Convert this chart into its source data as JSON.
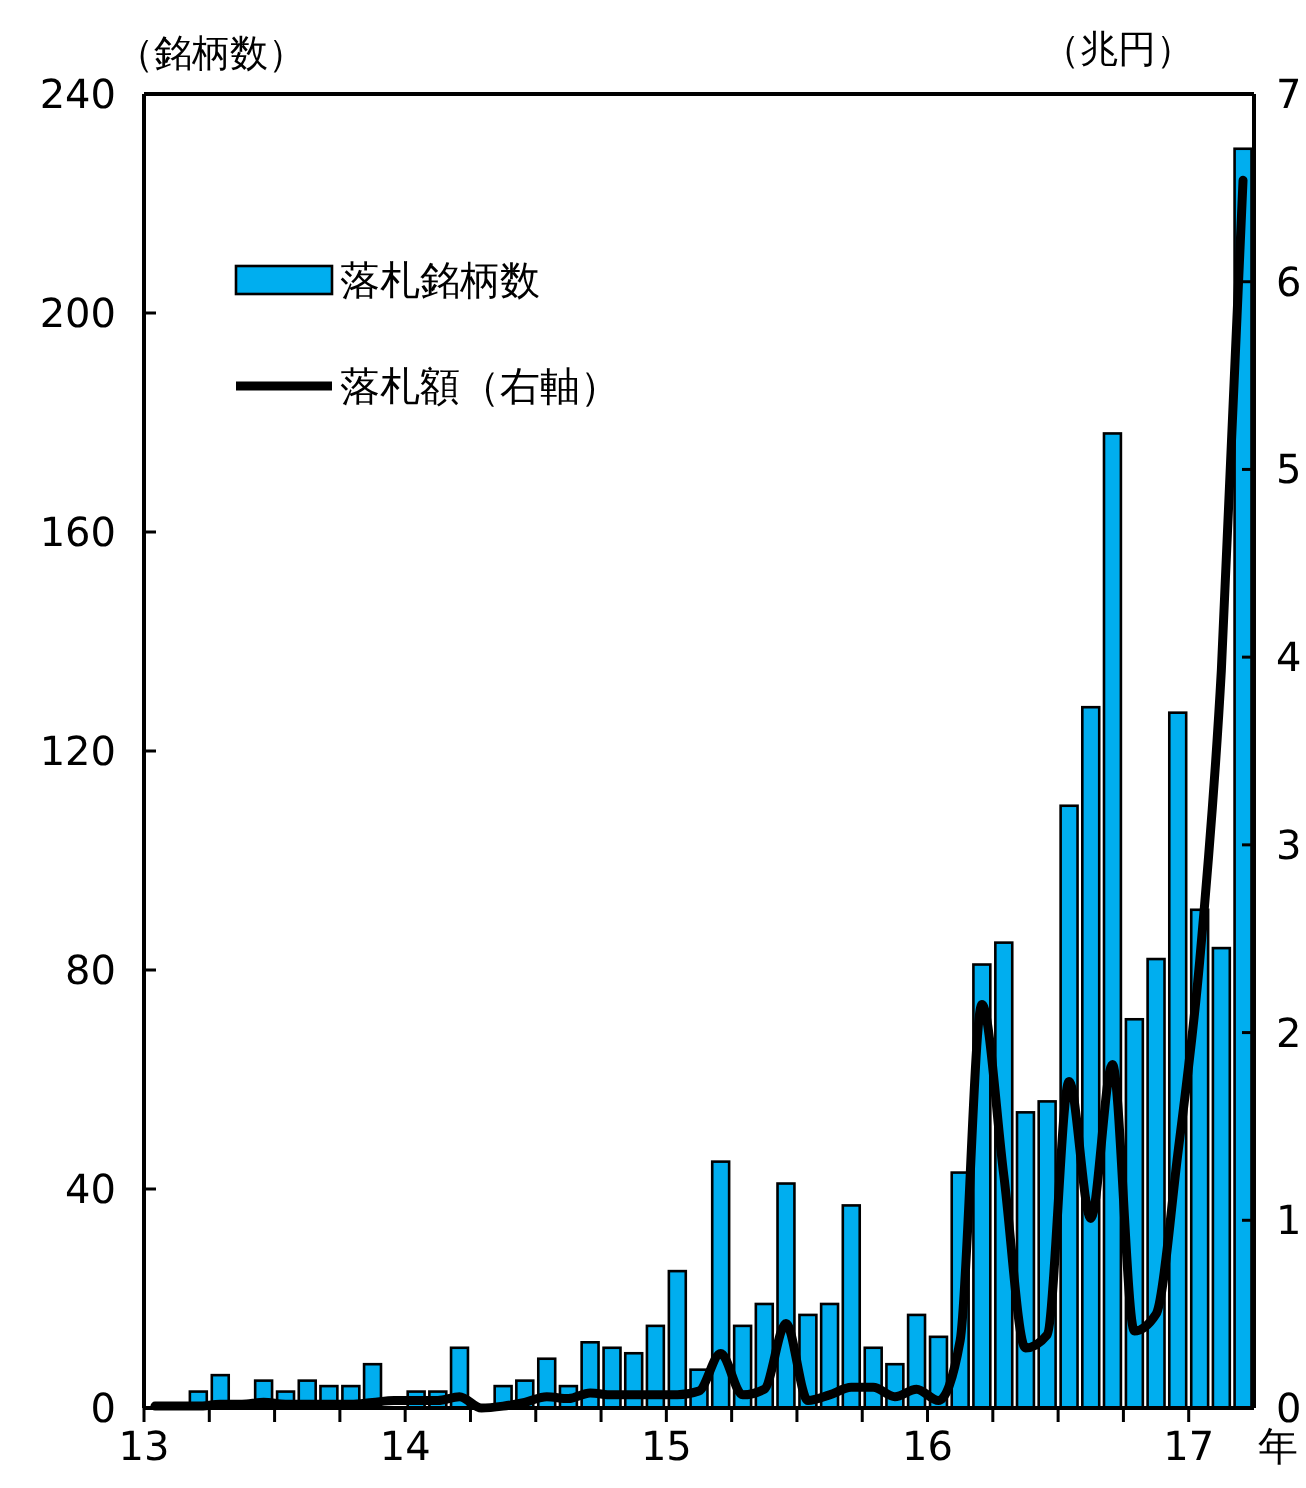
{
  "chart_data": {
    "type": "bar",
    "ylabel": "（銘柄数）",
    "y2label": "（兆円）",
    "xlabel": "年",
    "x": [
      13.042,
      13.125,
      13.208,
      13.292,
      13.375,
      13.458,
      13.542,
      13.625,
      13.708,
      13.792,
      13.875,
      13.958,
      14.042,
      14.125,
      14.208,
      14.292,
      14.375,
      14.458,
      14.542,
      14.625,
      14.708,
      14.792,
      14.875,
      14.958,
      15.042,
      15.125,
      15.208,
      15.292,
      15.375,
      15.458,
      15.542,
      15.625,
      15.708,
      15.792,
      15.875,
      15.958,
      16.042,
      16.125,
      16.208,
      16.292,
      16.375,
      16.458,
      16.542,
      16.625,
      16.708,
      16.792,
      16.875,
      16.958,
      17.042,
      17.125,
      17.208
    ],
    "xlim": [
      13,
      17.25
    ],
    "xticks": [
      13,
      {
        "value": 13.25,
        "label": null
      },
      {
        "value": 13.5,
        "label": null
      },
      {
        "value": 13.75,
        "label": null
      },
      14,
      {
        "value": 14.25,
        "label": null
      },
      {
        "value": 14.5,
        "label": null
      },
      {
        "value": 14.75,
        "label": null
      },
      15,
      {
        "value": 15.25,
        "label": null
      },
      {
        "value": 15.5,
        "label": null
      },
      {
        "value": 15.75,
        "label": null
      },
      16,
      {
        "value": 16.25,
        "label": null
      },
      {
        "value": 16.5,
        "label": null
      },
      {
        "value": 16.75,
        "label": null
      },
      17
    ],
    "ylim": [
      0,
      240
    ],
    "yticks": [
      0,
      40,
      80,
      120,
      160,
      200,
      240
    ],
    "y2lim": [
      0,
      7
    ],
    "y2ticks": [
      0,
      1,
      2,
      3,
      4,
      5,
      6,
      7
    ],
    "legend": "top left",
    "series": [
      {
        "name": "落札銘柄数",
        "color": "#00aeef",
        "values": [
          0,
          0,
          3,
          6,
          0,
          5,
          3,
          5,
          4,
          4,
          8,
          0,
          3,
          3,
          11,
          0,
          4,
          5,
          9,
          4,
          12,
          11,
          10,
          15,
          25,
          7,
          45,
          15,
          19,
          41,
          17,
          19,
          37,
          11,
          8,
          17,
          13,
          43,
          81,
          85,
          54,
          56,
          110,
          128,
          178,
          71,
          82,
          127,
          91,
          84,
          230
        ]
      },
      {
        "name": "落札額（右軸）",
        "type": "line",
        "axis": "y2",
        "color": "#000000",
        "values": [
          0.01,
          0.01,
          0.01,
          0.02,
          0.02,
          0.03,
          0.02,
          0.02,
          0.02,
          0.02,
          0.03,
          0.04,
          0.04,
          0.04,
          0.06,
          0.0,
          0.01,
          0.03,
          0.06,
          0.05,
          0.08,
          0.07,
          0.07,
          0.07,
          0.07,
          0.09,
          0.29,
          0.07,
          0.1,
          0.45,
          0.04,
          0.07,
          0.11,
          0.11,
          0.06,
          0.1,
          0.04,
          0.36,
          2.15,
          1.24,
          0.32,
          0.39,
          1.74,
          1.01,
          1.83,
          0.41,
          0.5,
          1.35,
          2.38,
          3.93,
          6.54
        ]
      }
    ]
  }
}
